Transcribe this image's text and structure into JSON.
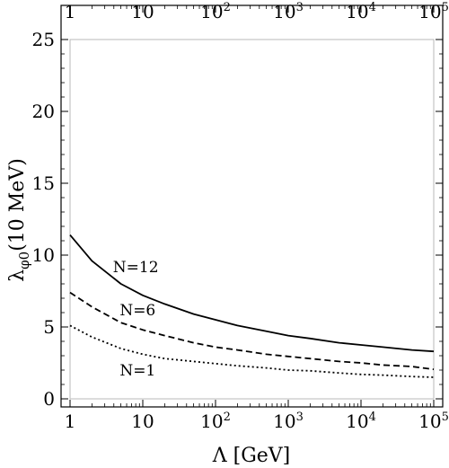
{
  "chart_data": {
    "type": "line",
    "title": "",
    "xlabel": "Λ [GeV]",
    "ylabel": "λφ0(10 MeV)",
    "ylabel_main": "λ",
    "ylabel_sub": "φ0",
    "ylabel_rest": "(10 MeV)",
    "x_scale": "log",
    "xlim": [
      1,
      100000
    ],
    "ylim": [
      0,
      25
    ],
    "grid": false,
    "x_ticks": [
      {
        "value": 1,
        "base": "1",
        "exp": ""
      },
      {
        "value": 10,
        "base": "10",
        "exp": ""
      },
      {
        "value": 100,
        "base": "10",
        "exp": "2"
      },
      {
        "value": 1000,
        "base": "10",
        "exp": "3"
      },
      {
        "value": 10000,
        "base": "10",
        "exp": "4"
      },
      {
        "value": 100000,
        "base": "10",
        "exp": "5"
      }
    ],
    "y_ticks": [
      0,
      5,
      10,
      15,
      20,
      25
    ],
    "series": [
      {
        "name": "N=12",
        "style": "solid",
        "label_at": [
          8,
          9.2
        ],
        "x": [
          1,
          2,
          5,
          10,
          20,
          50,
          100,
          200,
          500,
          1000,
          2000,
          5000,
          10000,
          20000,
          50000,
          100000
        ],
        "y": [
          11.4,
          9.6,
          8.0,
          7.2,
          6.6,
          5.9,
          5.5,
          5.1,
          4.7,
          4.4,
          4.2,
          3.9,
          3.75,
          3.6,
          3.4,
          3.3
        ]
      },
      {
        "name": "N=6",
        "style": "dashed",
        "label_at": [
          8.5,
          6.2
        ],
        "x": [
          1,
          2,
          5,
          10,
          20,
          50,
          100,
          200,
          500,
          1000,
          2000,
          5000,
          10000,
          20000,
          50000,
          100000
        ],
        "y": [
          7.4,
          6.4,
          5.3,
          4.8,
          4.4,
          3.9,
          3.6,
          3.4,
          3.1,
          2.95,
          2.8,
          2.6,
          2.5,
          2.35,
          2.25,
          2.05
        ]
      },
      {
        "name": "N=1",
        "style": "dotted",
        "label_at": [
          8.5,
          2.0
        ],
        "x": [
          1,
          2,
          5,
          10,
          20,
          50,
          100,
          200,
          500,
          1000,
          2000,
          5000,
          10000,
          20000,
          50000,
          100000
        ],
        "y": [
          5.1,
          4.3,
          3.5,
          3.1,
          2.8,
          2.6,
          2.45,
          2.3,
          2.15,
          2.0,
          1.95,
          1.8,
          1.7,
          1.65,
          1.55,
          1.5
        ]
      }
    ]
  }
}
